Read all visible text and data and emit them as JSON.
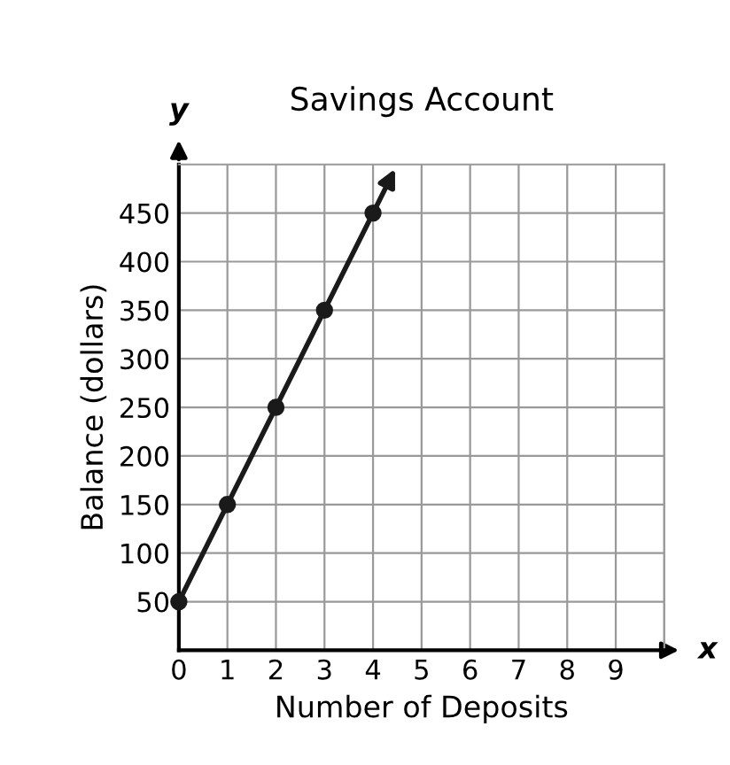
{
  "chart_data": {
    "type": "line",
    "title": "Savings Account",
    "xlabel": "Number of Deposits",
    "ylabel": "Balance (dollars)",
    "annotations": [
      "y",
      "x"
    ],
    "x": [
      0,
      1,
      2,
      3,
      4
    ],
    "series": [
      {
        "color": "#1a1a1a",
        "values": [
          50,
          150,
          250,
          350,
          450
        ]
      }
    ],
    "marker": "circle",
    "line_style": "solid",
    "xlim": [
      0,
      10
    ],
    "ylim": [
      0,
      500
    ],
    "xticks": [
      0,
      1,
      2,
      3,
      4,
      5,
      6,
      7,
      8,
      9
    ],
    "yticks": [
      50,
      100,
      150,
      200,
      250,
      300,
      350,
      400,
      450
    ],
    "grid": true
  }
}
